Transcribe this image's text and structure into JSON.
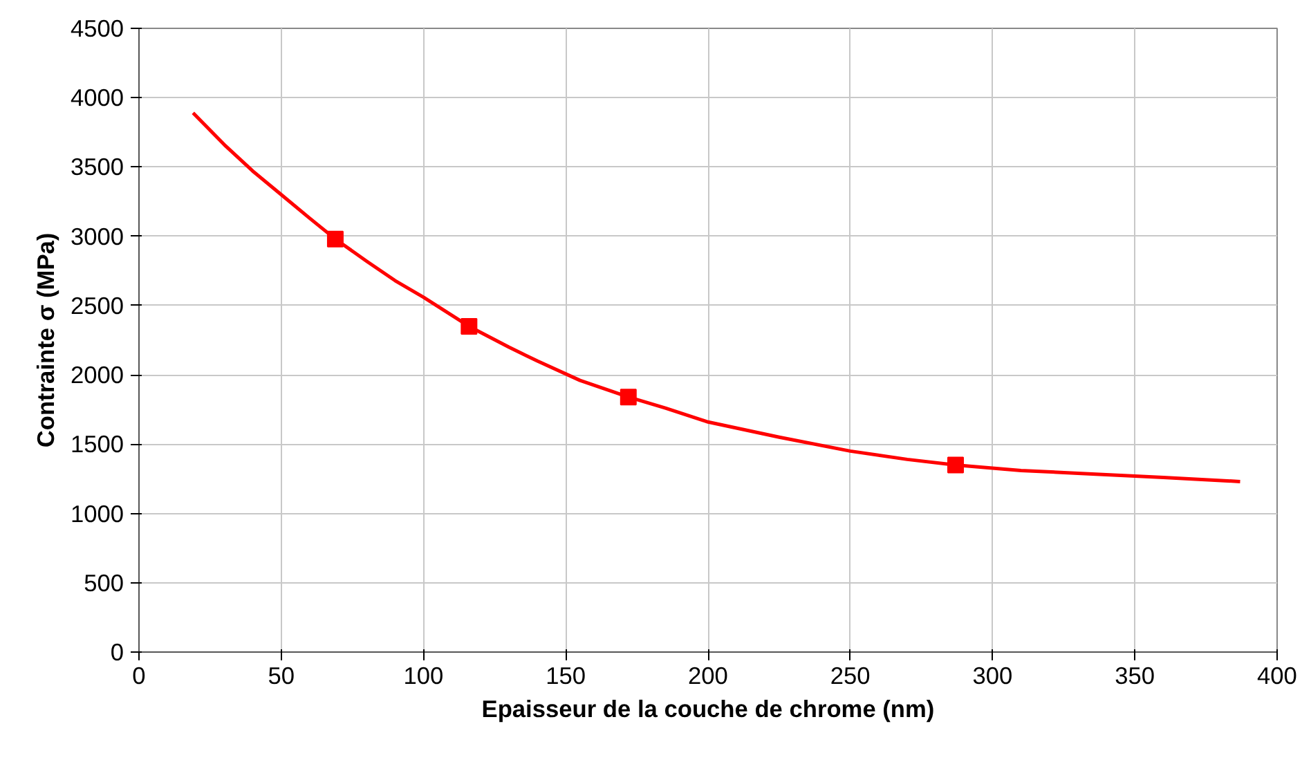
{
  "chart_data": {
    "type": "scatter",
    "xlabel": "Epaisseur de la couche de chrome (nm)",
    "ylabel": "Contrainte σ (MPa)",
    "xlim": [
      0,
      400
    ],
    "xticks": [
      0,
      50,
      100,
      150,
      200,
      250,
      300,
      350,
      400
    ],
    "ylim": [
      0,
      4500
    ],
    "yticks": [
      0,
      500,
      1000,
      1500,
      2000,
      2500,
      3000,
      3500,
      4000,
      4500
    ],
    "grid": true,
    "series": [
      {
        "type": "line",
        "color": "#ff0000",
        "marker": "none",
        "x": [
          19,
          30,
          40,
          50,
          60,
          69,
          80,
          90,
          100,
          116,
          130,
          140,
          155,
          172,
          185,
          200,
          225,
          250,
          270,
          287,
          310,
          330,
          360,
          387
        ],
        "values": [
          3890,
          3660,
          3470,
          3300,
          3130,
          2980,
          2820,
          2680,
          2560,
          2350,
          2200,
          2100,
          1960,
          1840,
          1760,
          1660,
          1550,
          1450,
          1390,
          1350,
          1310,
          1290,
          1260,
          1230
        ]
      },
      {
        "color": "#ff0000",
        "marker": "square",
        "x": [
          69,
          116,
          172,
          287
        ],
        "values": [
          2980,
          2350,
          1840,
          1350
        ]
      }
    ]
  }
}
